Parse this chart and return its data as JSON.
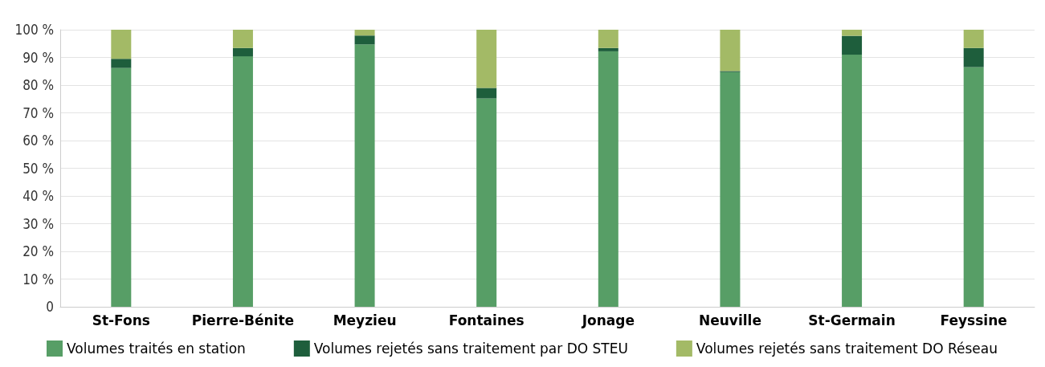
{
  "chart_data": {
    "type": "bar",
    "stacked": true,
    "categories": [
      "St-Fons",
      "Pierre-Bénite",
      "Meyzieu",
      "Fontaines",
      "Jonage",
      "Neuville",
      "St-Germain",
      "Feyssine"
    ],
    "series": [
      {
        "name": "Volumes traités en station",
        "color": "#579e66",
        "values": [
          86.2,
          90.4,
          94.7,
          75.2,
          92.2,
          84.7,
          91,
          86.5
        ]
      },
      {
        "name": "Volumes rejetés sans traitement par DO STEU",
        "color": "#1e5e3c",
        "values": [
          3.3,
          3,
          3.2,
          3.8,
          1.2,
          0.4,
          6.8,
          6.9
        ]
      },
      {
        "name": "Volumes rejetés sans traitement DO Réseau",
        "color": "#a3ba66",
        "values": [
          10.5,
          6.6,
          2.1,
          21,
          6.6,
          14.9,
          2.2,
          6.6
        ]
      }
    ],
    "ylim": [
      0,
      100
    ],
    "yticks": [
      0,
      {
        "value": 10,
        "label": "10 %"
      },
      {
        "value": 20,
        "label": "20 %"
      },
      {
        "value": 30,
        "label": "30 %"
      },
      {
        "value": 40,
        "label": "40 %"
      },
      {
        "value": 50,
        "label": "50 %"
      },
      {
        "value": 60,
        "label": "60 %"
      },
      {
        "value": 70,
        "label": "70 %"
      },
      {
        "value": 80,
        "label": "80 %"
      },
      {
        "value": 90,
        "label": "90 %"
      },
      {
        "value": 100,
        "label": "100 %"
      }
    ],
    "grid": "y",
    "legend": "bottom"
  }
}
